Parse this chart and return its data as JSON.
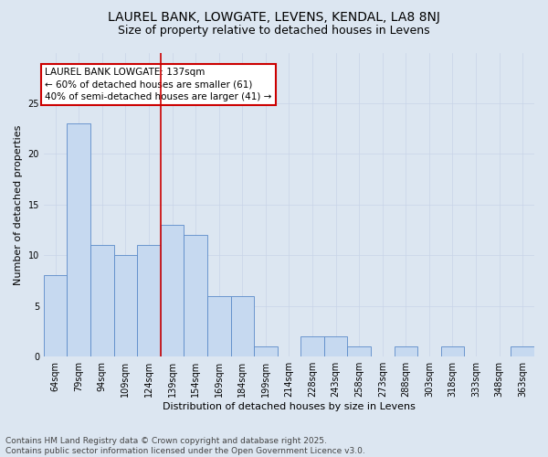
{
  "title1": "LAUREL BANK, LOWGATE, LEVENS, KENDAL, LA8 8NJ",
  "title2": "Size of property relative to detached houses in Levens",
  "xlabel": "Distribution of detached houses by size in Levens",
  "ylabel": "Number of detached properties",
  "categories": [
    "64sqm",
    "79sqm",
    "94sqm",
    "109sqm",
    "124sqm",
    "139sqm",
    "154sqm",
    "169sqm",
    "184sqm",
    "199sqm",
    "214sqm",
    "228sqm",
    "243sqm",
    "258sqm",
    "273sqm",
    "288sqm",
    "303sqm",
    "318sqm",
    "333sqm",
    "348sqm",
    "363sqm"
  ],
  "values": [
    8,
    23,
    11,
    10,
    11,
    13,
    12,
    6,
    6,
    1,
    0,
    2,
    2,
    1,
    0,
    1,
    0,
    1,
    0,
    0,
    1
  ],
  "bar_color": "#c6d9f0",
  "bar_edge_color": "#5b8bc9",
  "grid_color": "#c8d4e8",
  "background_color": "#dce6f1",
  "annotation_box_text": "LAUREL BANK LOWGATE: 137sqm\n← 60% of detached houses are smaller (61)\n40% of semi-detached houses are larger (41) →",
  "vline_x_index": 5,
  "vline_color": "#cc0000",
  "ylim": [
    0,
    30
  ],
  "yticks": [
    0,
    5,
    10,
    15,
    20,
    25
  ],
  "footer": "Contains HM Land Registry data © Crown copyright and database right 2025.\nContains public sector information licensed under the Open Government Licence v3.0.",
  "title1_fontsize": 10,
  "title2_fontsize": 9,
  "annotation_fontsize": 7.5,
  "footer_fontsize": 6.5,
  "axis_label_fontsize": 8,
  "tick_fontsize": 7
}
